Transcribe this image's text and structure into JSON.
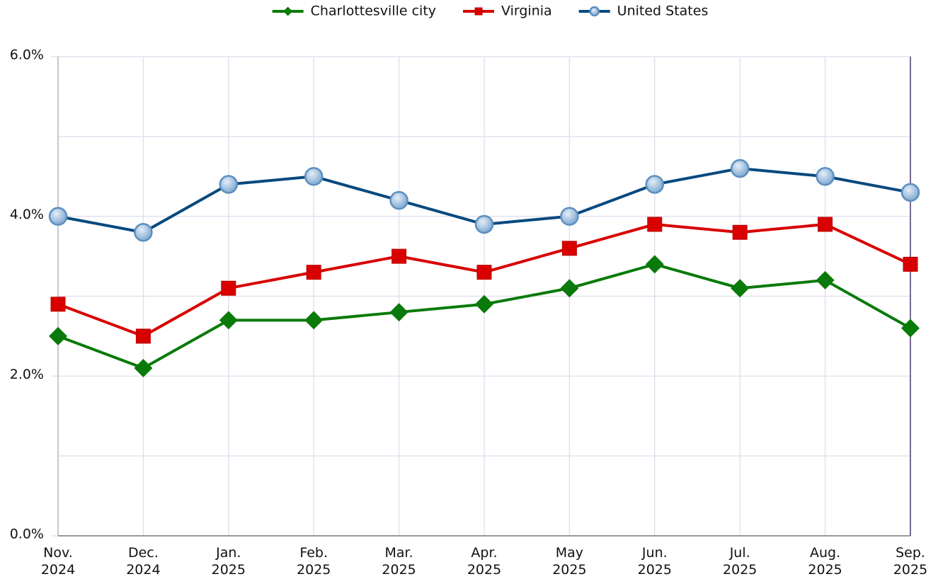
{
  "chart_data": {
    "type": "line",
    "categories": [
      "Nov. 2024",
      "Dec. 2024",
      "Jan. 2025",
      "Feb. 2025",
      "Mar. 2025",
      "Apr. 2025",
      "May 2025",
      "Jun. 2025",
      "Jul. 2025",
      "Aug. 2025",
      "Sep. 2025"
    ],
    "series": [
      {
        "name": "Charlottesville city",
        "color": "#0a7a0a",
        "marker": "diamond",
        "values": [
          2.5,
          2.1,
          2.7,
          2.7,
          2.8,
          2.9,
          3.1,
          3.4,
          3.1,
          3.2,
          2.6
        ]
      },
      {
        "name": "Virginia",
        "color": "#d80000",
        "marker": "square",
        "values": [
          2.9,
          2.5,
          3.1,
          3.3,
          3.5,
          3.3,
          3.6,
          3.9,
          3.8,
          3.9,
          3.4
        ]
      },
      {
        "name": "United States",
        "color": "#08497e",
        "marker": "circle",
        "values": [
          4.0,
          3.8,
          4.4,
          4.5,
          4.2,
          3.9,
          4.0,
          4.4,
          4.6,
          4.5,
          4.3
        ]
      }
    ],
    "ylim": [
      0,
      6
    ],
    "yticks": [
      {
        "value": 0,
        "label": "0.0%"
      },
      {
        "value": 2,
        "label": "2.0%"
      },
      {
        "value": 4,
        "label": "4.0%"
      },
      {
        "value": 6,
        "label": "6.0%"
      }
    ],
    "minor_yticks": [
      1,
      3,
      5
    ],
    "grid": true,
    "legend": "top"
  }
}
